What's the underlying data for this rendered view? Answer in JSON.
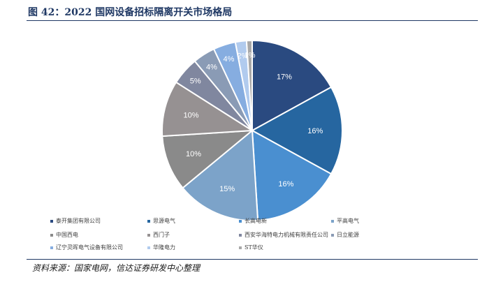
{
  "header": {
    "title": "图 42：2022 国网设备招标隔离开关市场格局"
  },
  "footer": {
    "source": "资料来源：国家电网，信达证券研发中心整理"
  },
  "chart_data": {
    "type": "pie",
    "title": "",
    "legend_position": "bottom",
    "slices": [
      {
        "name": "泰开集团有限公司",
        "value": 17,
        "label": "17%",
        "color": "#2a4a80"
      },
      {
        "name": "思源电气",
        "value": 16,
        "label": "16%",
        "color": "#2666a0"
      },
      {
        "name": "长高电新",
        "value": 16,
        "label": "16%",
        "color": "#4a8fd0"
      },
      {
        "name": "平高电气",
        "value": 15,
        "label": "15%",
        "color": "#7ca3c9"
      },
      {
        "name": "中国西电",
        "value": 10,
        "label": "10%",
        "color": "#8a8a8a"
      },
      {
        "name": "西门子",
        "value": 10,
        "label": "10%",
        "color": "#969192"
      },
      {
        "name": "西安华海特电力机械有限责任公司",
        "value": 5,
        "label": "5%",
        "color": "#80879f"
      },
      {
        "name": "日立能源",
        "value": 4,
        "label": "4%",
        "color": "#8a9bb5"
      },
      {
        "name": "辽宁灵晖电气设备有限公司",
        "value": 4,
        "label": "4%",
        "color": "#86ade0"
      },
      {
        "name": "华隆电力",
        "value": 2,
        "label": "2%",
        "color": "#b1cbee"
      },
      {
        "name": "ST华仪",
        "value": 1,
        "label": "1%",
        "color": "#a8a8a8"
      }
    ]
  }
}
